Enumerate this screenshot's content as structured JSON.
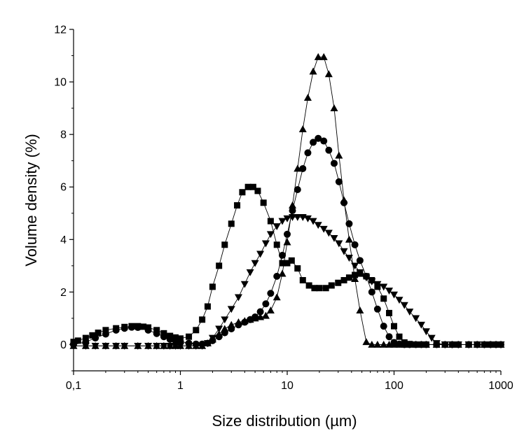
{
  "chart_data": {
    "type": "scatter",
    "xlabel": "Size distribution (µm)",
    "ylabel": "Volume density (%)",
    "x_scale": "log",
    "xlim": [
      0.1,
      1000
    ],
    "ylim": [
      -1,
      12
    ],
    "x_ticks": [
      0.1,
      1,
      10,
      100,
      1000
    ],
    "x_tick_labels": [
      "0,1",
      "1",
      "10",
      "100",
      "1000"
    ],
    "y_ticks": [
      0,
      2,
      4,
      6,
      8,
      10,
      12
    ],
    "y_tick_labels": [
      "0",
      "2",
      "4",
      "6",
      "8",
      "10",
      "12"
    ],
    "grid": false,
    "series": [
      {
        "marker": "square",
        "points": [
          [
            0.1,
            0.1
          ],
          [
            0.11,
            0.15
          ],
          [
            0.13,
            0.25
          ],
          [
            0.15,
            0.35
          ],
          [
            0.17,
            0.45
          ],
          [
            0.2,
            0.55
          ],
          [
            0.25,
            0.62
          ],
          [
            0.3,
            0.67
          ],
          [
            0.35,
            0.7
          ],
          [
            0.4,
            0.7
          ],
          [
            0.45,
            0.68
          ],
          [
            0.5,
            0.65
          ],
          [
            0.6,
            0.55
          ],
          [
            0.7,
            0.43
          ],
          [
            0.8,
            0.33
          ],
          [
            0.9,
            0.27
          ],
          [
            1.0,
            0.23
          ],
          [
            1.2,
            0.3
          ],
          [
            1.4,
            0.55
          ],
          [
            1.6,
            0.95
          ],
          [
            1.8,
            1.45
          ],
          [
            2.0,
            2.2
          ],
          [
            2.3,
            3.0
          ],
          [
            2.6,
            3.8
          ],
          [
            3.0,
            4.6
          ],
          [
            3.4,
            5.3
          ],
          [
            3.8,
            5.8
          ],
          [
            4.3,
            6.0
          ],
          [
            4.8,
            6.0
          ],
          [
            5.3,
            5.85
          ],
          [
            6.0,
            5.4
          ],
          [
            7.0,
            4.7
          ],
          [
            8.0,
            3.8
          ],
          [
            9.0,
            3.1
          ],
          [
            10.0,
            3.1
          ],
          [
            11.0,
            3.2
          ],
          [
            12.5,
            2.9
          ],
          [
            14,
            2.45
          ],
          [
            16,
            2.25
          ],
          [
            18,
            2.15
          ],
          [
            20,
            2.15
          ],
          [
            23,
            2.15
          ],
          [
            26,
            2.25
          ],
          [
            30,
            2.35
          ],
          [
            34,
            2.45
          ],
          [
            38,
            2.55
          ],
          [
            43,
            2.65
          ],
          [
            48,
            2.7
          ],
          [
            55,
            2.6
          ],
          [
            62,
            2.45
          ],
          [
            70,
            2.2
          ],
          [
            80,
            1.75
          ],
          [
            90,
            1.2
          ],
          [
            100,
            0.7
          ],
          [
            112,
            0.3
          ],
          [
            125,
            0.08
          ],
          [
            140,
            0.02
          ],
          [
            160,
            0
          ],
          [
            180,
            0
          ],
          [
            200,
            0
          ],
          [
            250,
            0
          ],
          [
            300,
            0
          ],
          [
            350,
            0
          ],
          [
            400,
            0
          ],
          [
            500,
            0
          ],
          [
            600,
            0
          ],
          [
            700,
            0
          ],
          [
            800,
            0
          ],
          [
            900,
            0
          ],
          [
            1000,
            0
          ]
        ]
      },
      {
        "marker": "circle",
        "points": [
          [
            0.1,
            0
          ],
          [
            0.13,
            0.1
          ],
          [
            0.16,
            0.25
          ],
          [
            0.2,
            0.4
          ],
          [
            0.25,
            0.55
          ],
          [
            0.3,
            0.62
          ],
          [
            0.35,
            0.66
          ],
          [
            0.4,
            0.65
          ],
          [
            0.5,
            0.55
          ],
          [
            0.6,
            0.42
          ],
          [
            0.7,
            0.3
          ],
          [
            0.8,
            0.2
          ],
          [
            0.9,
            0.15
          ],
          [
            1.0,
            0.12
          ],
          [
            1.2,
            0.05
          ],
          [
            1.4,
            0.02
          ],
          [
            1.6,
            0.02
          ],
          [
            1.8,
            0.05
          ],
          [
            2.0,
            0.15
          ],
          [
            2.3,
            0.3
          ],
          [
            2.6,
            0.45
          ],
          [
            3.0,
            0.6
          ],
          [
            3.5,
            0.75
          ],
          [
            4.0,
            0.85
          ],
          [
            4.5,
            0.95
          ],
          [
            5.0,
            1.05
          ],
          [
            5.6,
            1.25
          ],
          [
            6.3,
            1.55
          ],
          [
            7.0,
            1.95
          ],
          [
            8.0,
            2.6
          ],
          [
            9.0,
            3.4
          ],
          [
            10,
            4.2
          ],
          [
            11.2,
            5.1
          ],
          [
            12.5,
            5.9
          ],
          [
            14,
            6.7
          ],
          [
            15.6,
            7.3
          ],
          [
            17.5,
            7.7
          ],
          [
            19.5,
            7.85
          ],
          [
            22,
            7.75
          ],
          [
            24.5,
            7.4
          ],
          [
            27.5,
            6.9
          ],
          [
            30.5,
            6.2
          ],
          [
            34,
            5.4
          ],
          [
            38,
            4.6
          ],
          [
            43,
            3.8
          ],
          [
            48,
            3.2
          ],
          [
            55,
            2.6
          ],
          [
            62,
            2.0
          ],
          [
            70,
            1.35
          ],
          [
            80,
            0.7
          ],
          [
            90,
            0.3
          ],
          [
            100,
            0.08
          ],
          [
            112,
            0.02
          ],
          [
            125,
            0
          ],
          [
            140,
            0
          ],
          [
            160,
            0
          ],
          [
            180,
            0
          ],
          [
            200,
            0
          ],
          [
            250,
            0
          ],
          [
            300,
            0
          ],
          [
            350,
            0
          ],
          [
            400,
            0
          ],
          [
            500,
            0
          ],
          [
            600,
            0
          ],
          [
            700,
            0
          ],
          [
            800,
            0
          ],
          [
            900,
            0
          ],
          [
            1000,
            0
          ]
        ]
      },
      {
        "marker": "triangle-up",
        "points": [
          [
            0.1,
            -0.05
          ],
          [
            0.13,
            -0.05
          ],
          [
            0.16,
            -0.05
          ],
          [
            0.2,
            -0.05
          ],
          [
            0.25,
            -0.05
          ],
          [
            0.3,
            -0.05
          ],
          [
            0.4,
            -0.05
          ],
          [
            0.5,
            -0.05
          ],
          [
            0.6,
            -0.05
          ],
          [
            0.7,
            -0.05
          ],
          [
            0.8,
            -0.05
          ],
          [
            0.9,
            -0.05
          ],
          [
            1.0,
            -0.05
          ],
          [
            1.2,
            -0.05
          ],
          [
            1.4,
            -0.05
          ],
          [
            1.6,
            -0.05
          ],
          [
            1.8,
            0.05
          ],
          [
            2.0,
            0.2
          ],
          [
            2.3,
            0.4
          ],
          [
            2.6,
            0.6
          ],
          [
            3.0,
            0.75
          ],
          [
            3.5,
            0.85
          ],
          [
            4.0,
            0.9
          ],
          [
            4.5,
            0.95
          ],
          [
            5.0,
            1.0
          ],
          [
            5.6,
            1.05
          ],
          [
            6.3,
            1.1
          ],
          [
            7.0,
            1.3
          ],
          [
            8.0,
            1.8
          ],
          [
            9.0,
            2.7
          ],
          [
            10,
            3.9
          ],
          [
            11.2,
            5.3
          ],
          [
            12.5,
            6.7
          ],
          [
            14,
            8.2
          ],
          [
            15.6,
            9.4
          ],
          [
            17.5,
            10.4
          ],
          [
            19.5,
            10.95
          ],
          [
            22,
            10.95
          ],
          [
            24.5,
            10.3
          ],
          [
            27.5,
            9.0
          ],
          [
            30.5,
            7.2
          ],
          [
            34,
            5.5
          ],
          [
            38,
            4.0
          ],
          [
            43,
            2.5
          ],
          [
            48,
            1.3
          ],
          [
            55,
            0.1
          ],
          [
            62,
            0
          ],
          [
            70,
            0
          ],
          [
            80,
            0
          ],
          [
            90,
            0
          ],
          [
            100,
            0
          ],
          [
            112,
            0
          ],
          [
            125,
            0
          ],
          [
            140,
            0
          ],
          [
            160,
            0
          ],
          [
            180,
            0
          ],
          [
            200,
            0
          ],
          [
            250,
            0
          ],
          [
            300,
            0
          ],
          [
            350,
            0
          ],
          [
            400,
            0
          ],
          [
            500,
            0
          ],
          [
            600,
            0
          ],
          [
            700,
            0
          ],
          [
            800,
            0
          ],
          [
            900,
            0
          ],
          [
            1000,
            0
          ]
        ]
      },
      {
        "marker": "triangle-down",
        "points": [
          [
            0.1,
            -0.05
          ],
          [
            0.13,
            -0.05
          ],
          [
            0.16,
            -0.05
          ],
          [
            0.2,
            -0.05
          ],
          [
            0.25,
            -0.05
          ],
          [
            0.3,
            -0.05
          ],
          [
            0.4,
            -0.05
          ],
          [
            0.5,
            -0.05
          ],
          [
            0.6,
            -0.05
          ],
          [
            0.7,
            -0.05
          ],
          [
            0.8,
            -0.05
          ],
          [
            0.9,
            -0.05
          ],
          [
            1.0,
            -0.05
          ],
          [
            1.2,
            -0.05
          ],
          [
            1.4,
            -0.05
          ],
          [
            1.6,
            -0.05
          ],
          [
            1.8,
            0.05
          ],
          [
            2.0,
            0.25
          ],
          [
            2.3,
            0.6
          ],
          [
            2.6,
            0.95
          ],
          [
            3.0,
            1.35
          ],
          [
            3.5,
            1.8
          ],
          [
            4.0,
            2.3
          ],
          [
            4.5,
            2.75
          ],
          [
            5.0,
            3.1
          ],
          [
            5.6,
            3.45
          ],
          [
            6.3,
            3.85
          ],
          [
            7.0,
            4.2
          ],
          [
            8.0,
            4.5
          ],
          [
            9.0,
            4.7
          ],
          [
            10,
            4.8
          ],
          [
            11.2,
            4.85
          ],
          [
            12.5,
            4.85
          ],
          [
            14,
            4.85
          ],
          [
            15.6,
            4.8
          ],
          [
            17.5,
            4.7
          ],
          [
            19.5,
            4.55
          ],
          [
            22,
            4.4
          ],
          [
            24.5,
            4.25
          ],
          [
            27.5,
            4.05
          ],
          [
            30.5,
            3.85
          ],
          [
            34,
            3.55
          ],
          [
            38,
            3.3
          ],
          [
            43,
            3.0
          ],
          [
            48,
            2.75
          ],
          [
            55,
            2.55
          ],
          [
            62,
            2.4
          ],
          [
            70,
            2.3
          ],
          [
            80,
            2.2
          ],
          [
            90,
            2.05
          ],
          [
            100,
            1.9
          ],
          [
            112,
            1.7
          ],
          [
            125,
            1.5
          ],
          [
            140,
            1.25
          ],
          [
            160,
            1.0
          ],
          [
            180,
            0.75
          ],
          [
            200,
            0.5
          ],
          [
            225,
            0.25
          ],
          [
            250,
            0.05
          ],
          [
            300,
            0
          ],
          [
            350,
            0
          ],
          [
            400,
            0
          ],
          [
            500,
            0
          ],
          [
            600,
            0
          ],
          [
            700,
            0
          ],
          [
            800,
            0
          ],
          [
            900,
            0
          ],
          [
            1000,
            0
          ]
        ]
      }
    ]
  }
}
